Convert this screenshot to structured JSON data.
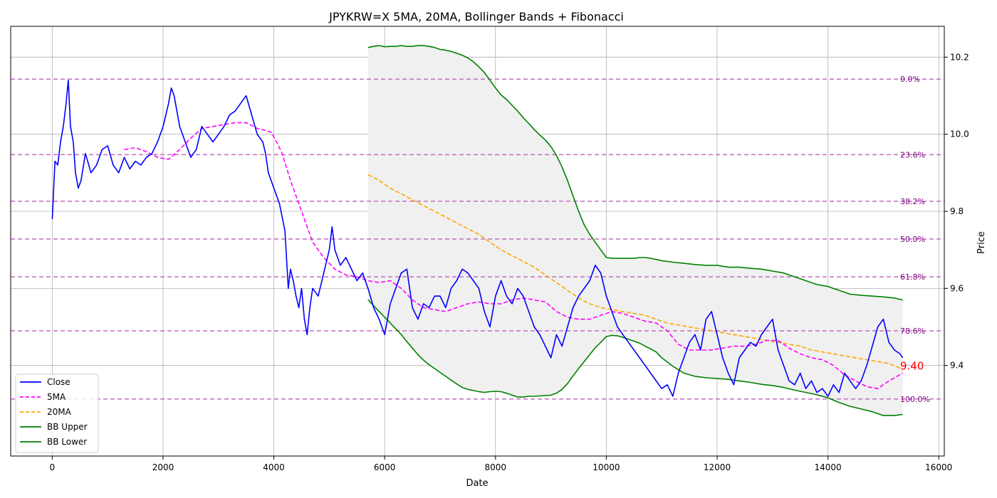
{
  "chart_data": {
    "type": "line",
    "title": "JPYKRW=X 5MA, 20MA, Bollinger Bands + Fibonacci",
    "xlabel": "Date",
    "ylabel": "Price",
    "xlim": [
      -750,
      16100
    ],
    "ylim": [
      9.165,
      10.28
    ],
    "x_ticks": [
      0,
      2000,
      4000,
      6000,
      8000,
      10000,
      12000,
      14000,
      16000
    ],
    "y_ticks": [
      9.4,
      9.6,
      9.8,
      10.0,
      10.2
    ],
    "grid": true,
    "y_axis_side": "right",
    "legend_position": "lower-left",
    "last_price_label": "9.40",
    "colors": {
      "close": "#0000ff",
      "ma5": "#ff00ff",
      "ma20": "#ffa500",
      "bb": "#008000",
      "band_fill": "#f0f0f0",
      "fib": "#bf6fbf",
      "fib_text": "#800080",
      "last_price": "#ff0000"
    },
    "fibonacci": [
      {
        "label": "0.0%",
        "price": 10.143
      },
      {
        "label": "23.6%",
        "price": 9.947
      },
      {
        "label": "38.2%",
        "price": 9.826
      },
      {
        "label": "50.0%",
        "price": 9.728
      },
      {
        "label": "61.8%",
        "price": 9.63
      },
      {
        "label": "78.6%",
        "price": 9.49
      },
      {
        "label": "100.0%",
        "price": 9.313
      }
    ],
    "series": [
      {
        "name": "Close",
        "style": "solid",
        "x": [
          0,
          50,
          100,
          150,
          200,
          250,
          290,
          330,
          380,
          420,
          470,
          520,
          600,
          700,
          800,
          900,
          1000,
          1100,
          1200,
          1300,
          1400,
          1500,
          1600,
          1700,
          1800,
          1900,
          2000,
          2100,
          2150,
          2200,
          2300,
          2400,
          2500,
          2600,
          2700,
          2800,
          2900,
          3000,
          3100,
          3200,
          3300,
          3400,
          3500,
          3600,
          3700,
          3800,
          3850,
          3900,
          4000,
          4100,
          4200,
          4260,
          4300,
          4350,
          4400,
          4450,
          4500,
          4550,
          4600,
          4650,
          4700,
          4800,
          4900,
          5000,
          5050,
          5100,
          5200,
          5300,
          5400,
          5500,
          5600,
          5700,
          5800,
          5900,
          6000,
          6100,
          6200,
          6300,
          6400,
          6500,
          6600,
          6700,
          6800,
          6900,
          7000,
          7100,
          7200,
          7300,
          7400,
          7500,
          7600,
          7700,
          7800,
          7900,
          8000,
          8100,
          8200,
          8300,
          8400,
          8500,
          8600,
          8700,
          8800,
          8900,
          9000,
          9100,
          9200,
          9300,
          9400,
          9500,
          9600,
          9700,
          9800,
          9900,
          10000,
          10100,
          10200,
          10300,
          10400,
          10500,
          10600,
          10700,
          10800,
          10900,
          11000,
          11100,
          11200,
          11300,
          11400,
          11500,
          11600,
          11700,
          11800,
          11900,
          12000,
          12100,
          12200,
          12300,
          12400,
          12500,
          12600,
          12700,
          12800,
          12900,
          13000,
          13100,
          13200,
          13300,
          13400,
          13500,
          13600,
          13700,
          13800,
          13900,
          14000,
          14100,
          14200,
          14300,
          14400,
          14500,
          14600,
          14700,
          14800,
          14900,
          15000,
          15100,
          15200,
          15300,
          15350
        ],
        "values": [
          9.78,
          9.93,
          9.92,
          9.98,
          10.02,
          10.08,
          10.14,
          10.02,
          9.98,
          9.9,
          9.86,
          9.88,
          9.95,
          9.9,
          9.92,
          9.96,
          9.97,
          9.92,
          9.9,
          9.94,
          9.91,
          9.93,
          9.92,
          9.94,
          9.95,
          9.98,
          10.02,
          10.08,
          10.12,
          10.1,
          10.02,
          9.98,
          9.94,
          9.96,
          10.02,
          10.0,
          9.98,
          10.0,
          10.02,
          10.05,
          10.06,
          10.08,
          10.1,
          10.05,
          10.0,
          9.98,
          9.95,
          9.9,
          9.86,
          9.82,
          9.75,
          9.6,
          9.65,
          9.62,
          9.58,
          9.55,
          9.6,
          9.52,
          9.48,
          9.55,
          9.6,
          9.58,
          9.64,
          9.7,
          9.76,
          9.7,
          9.66,
          9.68,
          9.65,
          9.62,
          9.64,
          9.6,
          9.55,
          9.52,
          9.48,
          9.56,
          9.6,
          9.64,
          9.65,
          9.55,
          9.52,
          9.56,
          9.55,
          9.58,
          9.58,
          9.55,
          9.6,
          9.62,
          9.65,
          9.64,
          9.62,
          9.6,
          9.54,
          9.5,
          9.58,
          9.62,
          9.58,
          9.56,
          9.6,
          9.58,
          9.54,
          9.5,
          9.48,
          9.45,
          9.42,
          9.48,
          9.45,
          9.5,
          9.55,
          9.58,
          9.6,
          9.62,
          9.66,
          9.64,
          9.58,
          9.54,
          9.5,
          9.48,
          9.46,
          9.44,
          9.42,
          9.4,
          9.38,
          9.36,
          9.34,
          9.35,
          9.32,
          9.38,
          9.42,
          9.46,
          9.48,
          9.44,
          9.52,
          9.54,
          9.48,
          9.42,
          9.38,
          9.35,
          9.42,
          9.44,
          9.46,
          9.45,
          9.48,
          9.5,
          9.52,
          9.44,
          9.4,
          9.36,
          9.35,
          9.38,
          9.34,
          9.36,
          9.33,
          9.34,
          9.32,
          9.35,
          9.33,
          9.38,
          9.36,
          9.34,
          9.36,
          9.4,
          9.45,
          9.5,
          9.52,
          9.46,
          9.44,
          9.43,
          9.42
        ]
      },
      {
        "name": "5MA",
        "style": "dashed",
        "x": [
          1300,
          1500,
          1700,
          1900,
          2100,
          2300,
          2500,
          2700,
          2900,
          3100,
          3300,
          3500,
          3700,
          3850,
          3950,
          4050,
          4150,
          4300,
          4500,
          4700,
          4900,
          5100,
          5300,
          5500,
          5700,
          5900,
          6100,
          6300,
          6500,
          6700,
          6900,
          7100,
          7300,
          7500,
          7700,
          7900,
          8100,
          8300,
          8500,
          8700,
          8900,
          9100,
          9300,
          9500,
          9700,
          9900,
          10100,
          10300,
          10500,
          10700,
          10900,
          11100,
          11300,
          11500,
          11700,
          11900,
          12100,
          12300,
          12500,
          12700,
          12900,
          13100,
          13300,
          13500,
          13700,
          13900,
          14100,
          14300,
          14500,
          14700,
          14900,
          15100,
          15350
        ],
        "values": [
          9.96,
          9.965,
          9.955,
          9.94,
          9.935,
          9.96,
          9.99,
          10.015,
          10.02,
          10.025,
          10.03,
          10.03,
          10.015,
          10.01,
          10.005,
          9.98,
          9.95,
          9.88,
          9.8,
          9.72,
          9.68,
          9.65,
          9.635,
          9.63,
          9.62,
          9.615,
          9.62,
          9.6,
          9.57,
          9.55,
          9.545,
          9.54,
          9.55,
          9.56,
          9.565,
          9.56,
          9.56,
          9.57,
          9.575,
          9.57,
          9.565,
          9.54,
          9.525,
          9.52,
          9.52,
          9.53,
          9.54,
          9.535,
          9.525,
          9.515,
          9.51,
          9.49,
          9.455,
          9.44,
          9.44,
          9.44,
          9.445,
          9.45,
          9.45,
          9.455,
          9.465,
          9.465,
          9.445,
          9.43,
          9.42,
          9.415,
          9.4,
          9.375,
          9.36,
          9.345,
          9.34,
          9.36,
          9.38
        ]
      },
      {
        "name": "20MA",
        "style": "dashed",
        "x": [
          5700,
          5900,
          6100,
          6300,
          6500,
          6700,
          6900,
          7100,
          7300,
          7500,
          7700,
          7900,
          8100,
          8300,
          8500,
          8700,
          8900,
          9100,
          9300,
          9500,
          9700,
          9900,
          10100,
          10300,
          10500,
          10700,
          10900,
          11100,
          11300,
          11500,
          11700,
          11900,
          12100,
          12300,
          12500,
          12700,
          12900,
          13100,
          13300,
          13500,
          13700,
          13900,
          14100,
          14300,
          14500,
          14700,
          14900,
          15100,
          15350
        ],
        "values": [
          9.895,
          9.88,
          9.86,
          9.845,
          9.83,
          9.815,
          9.8,
          9.785,
          9.77,
          9.755,
          9.74,
          9.72,
          9.7,
          9.685,
          9.67,
          9.655,
          9.635,
          9.615,
          9.595,
          9.575,
          9.56,
          9.55,
          9.545,
          9.54,
          9.535,
          9.53,
          9.52,
          9.51,
          9.505,
          9.5,
          9.495,
          9.49,
          9.485,
          9.48,
          9.475,
          9.47,
          9.465,
          9.46,
          9.455,
          9.45,
          9.44,
          9.435,
          9.43,
          9.425,
          9.42,
          9.415,
          9.41,
          9.405,
          9.39
        ]
      },
      {
        "name": "BB Upper",
        "style": "solid",
        "x": [
          5700,
          5800,
          5900,
          6000,
          6100,
          6200,
          6300,
          6400,
          6500,
          6600,
          6700,
          6800,
          6900,
          7000,
          7100,
          7200,
          7300,
          7400,
          7500,
          7600,
          7700,
          7800,
          7900,
          8000,
          8100,
          8200,
          8300,
          8400,
          8500,
          8600,
          8700,
          8800,
          8900,
          9000,
          9100,
          9200,
          9300,
          9400,
          9500,
          9600,
          9700,
          9800,
          9900,
          10000,
          10100,
          10200,
          10300,
          10400,
          10500,
          10600,
          10700,
          10800,
          10900,
          11000,
          11200,
          11400,
          11600,
          11800,
          12000,
          12200,
          12400,
          12600,
          12800,
          13000,
          13200,
          13400,
          13600,
          13800,
          14000,
          14200,
          14400,
          14600,
          14800,
          15000,
          15200,
          15350
        ],
        "values": [
          10.225,
          10.228,
          10.23,
          10.227,
          10.228,
          10.228,
          10.23,
          10.228,
          10.228,
          10.23,
          10.23,
          10.228,
          10.225,
          10.22,
          10.218,
          10.215,
          10.21,
          10.205,
          10.198,
          10.188,
          10.175,
          10.16,
          10.14,
          10.12,
          10.102,
          10.09,
          10.075,
          10.06,
          10.043,
          10.028,
          10.012,
          9.998,
          9.985,
          9.968,
          9.945,
          9.915,
          9.88,
          9.84,
          9.8,
          9.765,
          9.74,
          9.72,
          9.7,
          9.68,
          9.678,
          9.678,
          9.678,
          9.678,
          9.678,
          9.68,
          9.68,
          9.678,
          9.675,
          9.672,
          9.668,
          9.665,
          9.662,
          9.66,
          9.66,
          9.655,
          9.655,
          9.652,
          9.65,
          9.645,
          9.64,
          9.63,
          9.62,
          9.61,
          9.605,
          9.595,
          9.585,
          9.582,
          9.58,
          9.578,
          9.575,
          9.57
        ]
      },
      {
        "name": "BB Lower",
        "style": "solid",
        "x": [
          5700,
          5800,
          5900,
          6000,
          6100,
          6200,
          6300,
          6400,
          6500,
          6600,
          6700,
          6800,
          6900,
          7000,
          7100,
          7200,
          7300,
          7400,
          7500,
          7600,
          7700,
          7800,
          7900,
          8000,
          8100,
          8200,
          8300,
          8400,
          8500,
          8600,
          8700,
          8800,
          8900,
          9000,
          9100,
          9200,
          9300,
          9400,
          9500,
          9600,
          9700,
          9800,
          9900,
          10000,
          10100,
          10200,
          10300,
          10400,
          10500,
          10600,
          10700,
          10800,
          10900,
          11000,
          11200,
          11400,
          11600,
          11800,
          12000,
          12200,
          12400,
          12600,
          12800,
          13000,
          13200,
          13400,
          13600,
          13800,
          14000,
          14200,
          14400,
          14600,
          14800,
          15000,
          15200,
          15350
        ],
        "values": [
          9.571,
          9.555,
          9.54,
          9.525,
          9.51,
          9.495,
          9.48,
          9.462,
          9.445,
          9.428,
          9.414,
          9.402,
          9.392,
          9.382,
          9.372,
          9.362,
          9.352,
          9.343,
          9.338,
          9.335,
          9.332,
          9.33,
          9.332,
          9.333,
          9.332,
          9.328,
          9.323,
          9.318,
          9.318,
          9.32,
          9.32,
          9.321,
          9.322,
          9.323,
          9.328,
          9.338,
          9.353,
          9.373,
          9.392,
          9.41,
          9.428,
          9.446,
          9.46,
          9.475,
          9.478,
          9.477,
          9.473,
          9.468,
          9.463,
          9.458,
          9.45,
          9.443,
          9.435,
          9.42,
          9.398,
          9.38,
          9.372,
          9.368,
          9.366,
          9.364,
          9.36,
          9.356,
          9.351,
          9.348,
          9.343,
          9.336,
          9.33,
          9.324,
          9.316,
          9.304,
          9.294,
          9.287,
          9.28,
          9.27,
          9.27,
          9.273
        ]
      }
    ]
  }
}
